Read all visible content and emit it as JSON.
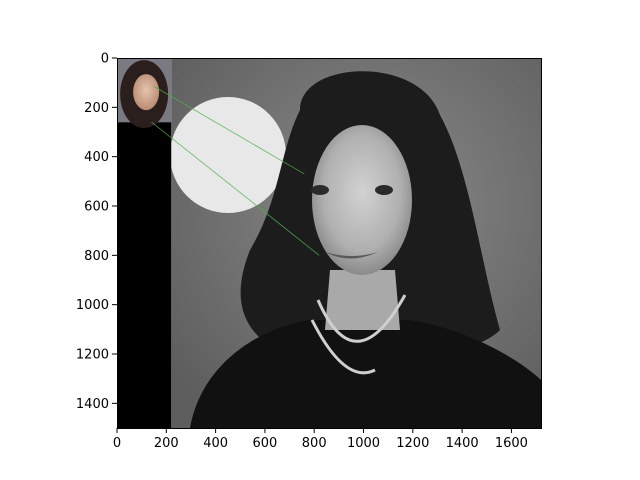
{
  "chart_data": {
    "type": "image",
    "title": "",
    "xlabel": "",
    "ylabel": "",
    "xlim": [
      0,
      1720
    ],
    "ylim": [
      1500,
      0
    ],
    "x_ticks": [
      0,
      200,
      400,
      600,
      800,
      1000,
      1200,
      1400,
      1600
    ],
    "y_ticks": [
      0,
      200,
      400,
      600,
      800,
      1000,
      1200,
      1400
    ],
    "grid": false,
    "colormap": "grayscale",
    "panels": [
      {
        "name": "thumbnail-face",
        "x_range": [
          0,
          220
        ],
        "y_range": [
          0,
          260
        ],
        "color_mode": "color"
      },
      {
        "name": "black-padding",
        "x_range": [
          0,
          220
        ],
        "y_range": [
          260,
          1500
        ],
        "color": "#000000"
      },
      {
        "name": "main-photo",
        "x_range": [
          220,
          1720
        ],
        "y_range": [
          0,
          1500
        ],
        "color_mode": "grayscale"
      }
    ],
    "match_lines": [
      {
        "from": [
          150,
          115
        ],
        "to": [
          760,
          470
        ]
      },
      {
        "from": [
          140,
          260
        ],
        "to": [
          820,
          800
        ]
      }
    ],
    "line_color": "#4caf50"
  }
}
